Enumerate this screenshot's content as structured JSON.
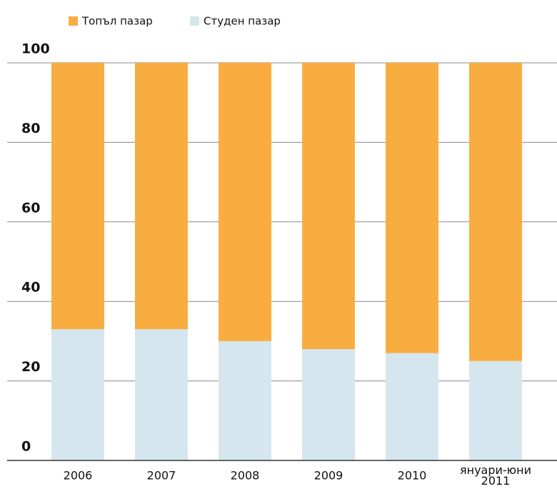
{
  "chart_data": {
    "type": "stacked_bar",
    "categories": [
      "2006",
      "2007",
      "2008",
      "2009",
      "2010",
      "януари-юни 2011"
    ],
    "series": [
      {
        "name": "Топъл пазар",
        "color": "#f9ad41",
        "values": [
          67,
          67,
          70,
          72,
          73,
          75
        ]
      },
      {
        "name": "Студен пазар",
        "color": "#d6e6ef",
        "values": [
          33,
          33,
          30,
          28,
          27,
          25
        ]
      }
    ],
    "ylim": [
      0,
      100
    ],
    "yticks": [
      0,
      20,
      40,
      60,
      80,
      100
    ],
    "grid": true
  }
}
